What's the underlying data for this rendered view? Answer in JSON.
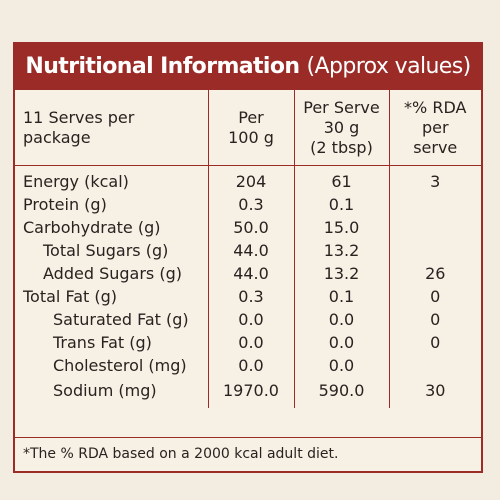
{
  "label": {
    "title": "Nutritional Information",
    "title_sub": "(Approx values)",
    "headers": [
      [
        "11 Serves per",
        "package"
      ],
      [
        "Per",
        "100 g"
      ],
      [
        "Per Serve",
        "30 g",
        "(2 tbsp)"
      ],
      [
        "*% RDA",
        "per",
        "serve"
      ]
    ],
    "rows": [
      {
        "name": "Energy (kcal)",
        "per100": "204",
        "perServe": "61",
        "rda": "3"
      },
      {
        "name": "Protein (g)",
        "per100": "0.3",
        "perServe": "0.1",
        "rda": ""
      },
      {
        "name": "Carbohydrate (g)",
        "per100": "50.0",
        "perServe": "15.0",
        "rda": ""
      },
      {
        "name": "Total Sugars (g)",
        "per100": "44.0",
        "perServe": "13.2",
        "rda": ""
      },
      {
        "name": "Added Sugars (g)",
        "per100": "44.0",
        "perServe": "13.2",
        "rda": "26"
      },
      {
        "name": "Total Fat (g)",
        "per100": "0.3",
        "perServe": "0.1",
        "rda": "0"
      },
      {
        "name": "Saturated Fat (g)",
        "per100": "0.0",
        "perServe": "0.0",
        "rda": "0"
      },
      {
        "name": "Trans Fat (g)",
        "per100": "0.0",
        "perServe": "0.0",
        "rda": "0"
      },
      {
        "name": "Cholesterol (mg)",
        "per100": "0.0",
        "perServe": "0.0",
        "rda": ""
      },
      {
        "name": "Sodium (mg)",
        "per100": "1970.0",
        "perServe": "590.0",
        "rda": "30"
      }
    ],
    "footnote": "*The % RDA based on a 2000 kcal adult diet.",
    "colors": {
      "accent": "#9b2b27",
      "background": "#f6f0e5",
      "title_text": "#ffffff",
      "body_text": "#2a2220"
    }
  }
}
